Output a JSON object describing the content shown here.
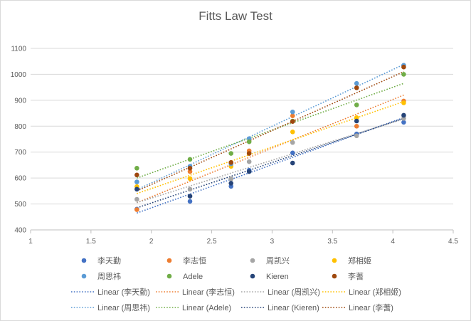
{
  "chart_data": {
    "type": "scatter",
    "title": "Fitts Law Test",
    "xlabel": "",
    "ylabel": "",
    "xlim": [
      1,
      4.5
    ],
    "ylim": [
      400,
      1100
    ],
    "xticks": [
      1,
      1.5,
      2,
      2.5,
      3,
      3.5,
      4,
      4.5
    ],
    "yticks": [
      400,
      500,
      600,
      700,
      800,
      900,
      1000,
      1100
    ],
    "xtick_labels": [
      "1",
      "1.5",
      "2",
      "2.5",
      "3",
      "3.5",
      "4",
      "4.5"
    ],
    "ytick_labels": [
      "400",
      "500",
      "600",
      "700",
      "800",
      "900",
      "1000",
      "1100"
    ],
    "grid": "horizontal",
    "legend_position": "bottom",
    "x": [
      1.88,
      2.32,
      2.66,
      2.81,
      3.17,
      3.7,
      4.09
    ],
    "series": [
      {
        "name": "李天勤",
        "color": "#4472c4",
        "values": [
          480,
          510,
          568,
          630,
          697,
          770,
          815
        ],
        "trend": [
          465,
          833
        ]
      },
      {
        "name": "李志恒",
        "color": "#ed7d31",
        "values": [
          478,
          625,
          660,
          705,
          840,
          800,
          897
        ],
        "trend": [
          505,
          920
        ]
      },
      {
        "name": "周凯兴",
        "color": "#a5a5a5",
        "values": [
          518,
          557,
          597,
          663,
          737,
          763,
          830
        ],
        "trend": [
          505,
          828
        ]
      },
      {
        "name": "郑相姬",
        "color": "#ffc000",
        "values": [
          567,
          598,
          645,
          695,
          778,
          833,
          890
        ],
        "trend": [
          540,
          895
        ]
      },
      {
        "name": "周思祎",
        "color": "#5b9bd5",
        "values": [
          585,
          645,
          655,
          752,
          855,
          965,
          1035
        ],
        "trend": [
          555,
          1038
        ]
      },
      {
        "name": "Adele",
        "color": "#70ad47",
        "values": [
          638,
          672,
          695,
          740,
          820,
          882,
          1000
        ],
        "trend": [
          600,
          965
        ]
      },
      {
        "name": "Kieren",
        "color": "#264478",
        "values": [
          557,
          530,
          580,
          625,
          658,
          820,
          842
        ],
        "trend": [
          485,
          830
        ]
      },
      {
        "name": "李蓍",
        "color": "#9e480e",
        "values": [
          612,
          638,
          660,
          695,
          818,
          948,
          1028
        ],
        "trend": [
          550,
          1010
        ]
      }
    ],
    "trendline_labels": [
      "Linear (李天勤)",
      "Linear (李志恒)",
      "Linear (周凯兴)",
      "Linear (郑相姬)",
      "Linear (周思祎)",
      "Linear (Adele)",
      "Linear (Kieren)",
      "Linear (李蓍)"
    ]
  }
}
